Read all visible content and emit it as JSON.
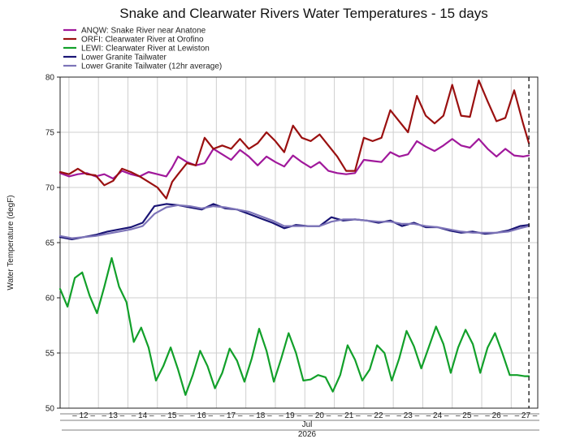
{
  "chart_data": {
    "type": "line",
    "title": "Snake and Clearwater Rivers Water Temperatures - 15 days",
    "ylabel": "Water Temperature (degF)",
    "ylim": [
      50,
      80
    ],
    "yticks": [
      50,
      55,
      60,
      65,
      70,
      75,
      80
    ],
    "xlim": [
      11.2,
      27.4
    ],
    "x_tick_labels": [
      "12",
      "13",
      "14",
      "15",
      "16",
      "17",
      "18",
      "19",
      "20",
      "21",
      "22",
      "23",
      "24",
      "25",
      "26",
      "27"
    ],
    "x_tick_values": [
      12,
      13,
      14,
      15,
      16,
      17,
      18,
      19,
      20,
      21,
      22,
      23,
      24,
      25,
      26,
      27
    ],
    "month_label": "Jul",
    "year_label": "2026",
    "grid": true,
    "legend_position": "top-left",
    "dashed_marker_x": 27.1,
    "series": [
      {
        "name": "ANQW: Snake River near Anatone",
        "color": "#a0189b",
        "x": [
          11.2,
          11.5,
          11.8,
          12.1,
          12.4,
          12.7,
          13.0,
          13.3,
          13.6,
          13.9,
          14.2,
          14.5,
          14.8,
          15.0,
          15.2,
          15.5,
          15.8,
          16.1,
          16.4,
          16.7,
          17.0,
          17.3,
          17.6,
          17.9,
          18.2,
          18.5,
          18.8,
          19.1,
          19.4,
          19.7,
          20.0,
          20.3,
          20.6,
          20.9,
          21.2,
          21.5,
          21.8,
          22.1,
          22.4,
          22.7,
          23.0,
          23.3,
          23.6,
          23.9,
          24.2,
          24.5,
          24.8,
          25.1,
          25.4,
          25.7,
          26.0,
          26.3,
          26.6,
          26.9,
          27.1
        ],
        "values": [
          71.3,
          71.0,
          71.2,
          71.3,
          71.0,
          71.2,
          70.8,
          71.5,
          71.2,
          71.0,
          71.4,
          71.2,
          71.0,
          71.8,
          72.8,
          72.3,
          72.0,
          72.2,
          73.5,
          73.0,
          72.5,
          73.4,
          72.8,
          72.0,
          72.8,
          72.3,
          71.9,
          72.9,
          72.3,
          71.8,
          72.3,
          71.5,
          71.3,
          71.2,
          71.3,
          72.5,
          72.4,
          72.3,
          73.2,
          72.8,
          73.0,
          74.2,
          73.7,
          73.3,
          73.8,
          74.4,
          73.8,
          73.6,
          74.4,
          73.5,
          72.8,
          73.5,
          72.9,
          72.8,
          72.9
        ]
      },
      {
        "name": "ORFI: Clearwater River at Orofino",
        "color": "#9a1010",
        "x": [
          11.2,
          11.5,
          11.8,
          12.1,
          12.4,
          12.7,
          13.0,
          13.3,
          13.6,
          13.9,
          14.2,
          14.5,
          14.8,
          15.0,
          15.2,
          15.5,
          15.8,
          16.1,
          16.4,
          16.7,
          17.0,
          17.3,
          17.6,
          17.9,
          18.2,
          18.5,
          18.8,
          19.1,
          19.4,
          19.7,
          20.0,
          20.3,
          20.6,
          20.9,
          21.2,
          21.5,
          21.8,
          22.1,
          22.4,
          22.7,
          23.0,
          23.3,
          23.6,
          23.9,
          24.2,
          24.5,
          24.8,
          25.1,
          25.4,
          25.7,
          26.0,
          26.3,
          26.6,
          26.9,
          27.1
        ],
        "values": [
          71.4,
          71.2,
          71.7,
          71.2,
          71.1,
          70.2,
          70.6,
          71.7,
          71.4,
          71.0,
          70.5,
          70.0,
          69.0,
          70.5,
          71.2,
          72.2,
          72.0,
          74.5,
          73.5,
          73.8,
          73.5,
          74.4,
          73.5,
          74.0,
          75.0,
          74.2,
          73.2,
          75.6,
          74.5,
          74.2,
          74.8,
          73.8,
          72.8,
          71.5,
          71.5,
          74.5,
          74.2,
          74.5,
          77.0,
          76.0,
          75.0,
          78.3,
          76.5,
          75.8,
          76.5,
          79.3,
          76.5,
          76.4,
          79.7,
          77.8,
          76.0,
          76.3,
          78.8,
          75.8,
          74.0
        ]
      },
      {
        "name": "LEWI: Clearwater River at Lewiston",
        "color": "#12a02a",
        "x": [
          11.2,
          11.45,
          11.7,
          11.95,
          12.2,
          12.45,
          12.7,
          12.95,
          13.2,
          13.45,
          13.7,
          13.95,
          14.2,
          14.45,
          14.7,
          14.95,
          15.2,
          15.45,
          15.7,
          15.95,
          16.2,
          16.45,
          16.7,
          16.95,
          17.2,
          17.45,
          17.7,
          17.95,
          18.2,
          18.45,
          18.7,
          18.95,
          19.2,
          19.45,
          19.7,
          19.95,
          20.2,
          20.45,
          20.7,
          20.95,
          21.2,
          21.45,
          21.7,
          21.95,
          22.2,
          22.45,
          22.7,
          22.95,
          23.2,
          23.45,
          23.7,
          23.95,
          24.2,
          24.45,
          24.7,
          24.95,
          25.2,
          25.45,
          25.7,
          25.95,
          26.2,
          26.45,
          26.7,
          26.95,
          27.1
        ],
        "values": [
          60.8,
          59.2,
          61.8,
          62.3,
          60.2,
          58.6,
          61.0,
          63.6,
          61.0,
          59.6,
          56.0,
          57.3,
          55.5,
          52.5,
          53.8,
          55.5,
          53.5,
          51.2,
          53.0,
          55.2,
          53.8,
          51.8,
          53.2,
          55.4,
          54.3,
          52.4,
          54.5,
          57.2,
          55.2,
          52.4,
          54.5,
          56.8,
          55.0,
          52.5,
          52.6,
          53.0,
          52.8,
          51.5,
          53.0,
          55.7,
          54.4,
          52.5,
          53.5,
          55.7,
          55.0,
          52.5,
          54.5,
          57.0,
          55.6,
          53.6,
          55.5,
          57.4,
          55.8,
          53.2,
          55.5,
          57.1,
          55.8,
          53.2,
          55.5,
          56.8,
          55.0,
          53.0,
          53.0,
          52.9,
          52.9
        ]
      },
      {
        "name": "Lower Granite Tailwater",
        "color": "#1a1575",
        "x": [
          11.2,
          11.6,
          12.0,
          12.4,
          12.8,
          13.2,
          13.6,
          14.0,
          14.4,
          14.8,
          15.2,
          15.6,
          16.0,
          16.4,
          16.8,
          17.2,
          17.6,
          18.0,
          18.4,
          18.8,
          19.2,
          19.6,
          20.0,
          20.4,
          20.8,
          21.2,
          21.6,
          22.0,
          22.4,
          22.8,
          23.2,
          23.6,
          24.0,
          24.4,
          24.8,
          25.2,
          25.6,
          26.0,
          26.4,
          26.8,
          27.1
        ],
        "values": [
          65.5,
          65.3,
          65.5,
          65.7,
          66.0,
          66.2,
          66.4,
          66.8,
          68.3,
          68.5,
          68.4,
          68.2,
          68.0,
          68.5,
          68.1,
          68.0,
          67.6,
          67.2,
          66.8,
          66.3,
          66.6,
          66.5,
          66.5,
          67.3,
          67.0,
          67.1,
          67.0,
          66.8,
          67.0,
          66.5,
          66.8,
          66.4,
          66.4,
          66.1,
          65.9,
          66.0,
          65.8,
          65.9,
          66.1,
          66.5,
          66.6
        ]
      },
      {
        "name": "Lower Granite Tailwater (12hr average)",
        "color": "#7d74b8",
        "x": [
          11.2,
          11.6,
          12.0,
          12.4,
          12.8,
          13.2,
          13.6,
          14.0,
          14.4,
          14.8,
          15.2,
          15.6,
          16.0,
          16.4,
          16.8,
          17.2,
          17.6,
          18.0,
          18.4,
          18.8,
          19.2,
          19.6,
          20.0,
          20.4,
          20.8,
          21.2,
          21.6,
          22.0,
          22.4,
          22.8,
          23.2,
          23.6,
          24.0,
          24.4,
          24.8,
          25.2,
          25.6,
          26.0,
          26.4,
          26.8,
          27.1
        ],
        "values": [
          65.6,
          65.4,
          65.5,
          65.6,
          65.8,
          66.0,
          66.2,
          66.5,
          67.6,
          68.2,
          68.4,
          68.3,
          68.1,
          68.3,
          68.2,
          68.0,
          67.8,
          67.4,
          67.0,
          66.5,
          66.5,
          66.5,
          66.5,
          66.9,
          67.1,
          67.1,
          67.0,
          66.9,
          66.9,
          66.7,
          66.7,
          66.5,
          66.4,
          66.2,
          66.0,
          65.9,
          65.9,
          65.9,
          66.0,
          66.3,
          66.5
        ]
      }
    ]
  }
}
